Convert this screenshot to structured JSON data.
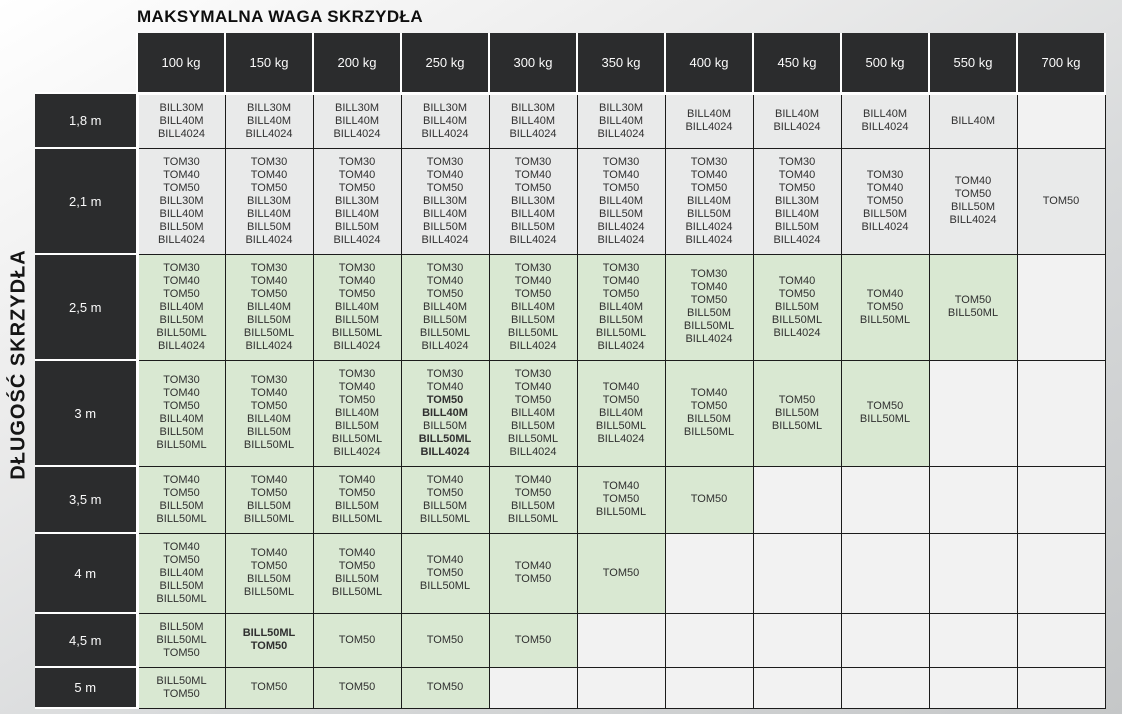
{
  "page": {
    "title": "MAKSYMALNA WAGA SKRZYDŁA",
    "side_label": "DŁUGOŚĆ SKRZYDŁA"
  },
  "colors": {
    "header_bg": "#2b2c2d",
    "cell_gray": "#e9eaea",
    "cell_green": "#d9e8d2",
    "cell_empty": "#f2f2f2",
    "grid_line": "#1c1c1c",
    "header_text": "#fafafa"
  },
  "table": {
    "columns": [
      "100 kg",
      "150 kg",
      "200 kg",
      "250 kg",
      "300 kg",
      "350 kg",
      "400 kg",
      "450 kg",
      "500 kg",
      "550 kg",
      "700 kg"
    ],
    "rows": [
      {
        "label": "1,8 m",
        "tone": "gray",
        "cells": [
          [
            "BILL30M",
            "BILL40M",
            "BILL4024"
          ],
          [
            "BILL30M",
            "BILL40M",
            "BILL4024"
          ],
          [
            "BILL30M",
            "BILL40M",
            "BILL4024"
          ],
          [
            "BILL30M",
            "BILL40M",
            "BILL4024"
          ],
          [
            "BILL30M",
            "BILL40M",
            "BILL4024"
          ],
          [
            "BILL30M",
            "BILL40M",
            "BILL4024"
          ],
          [
            "BILL40M",
            "BILL4024"
          ],
          [
            "BILL40M",
            "BILL4024"
          ],
          [
            "BILL40M",
            "BILL4024"
          ],
          [
            "BILL40M"
          ],
          []
        ]
      },
      {
        "label": "2,1 m",
        "tone": "gray",
        "cells": [
          [
            "TOM30",
            "TOM40",
            "TOM50",
            "BILL30M",
            "BILL40M",
            "BILL50M",
            "BILL4024"
          ],
          [
            "TOM30",
            "TOM40",
            "TOM50",
            "BILL30M",
            "BILL40M",
            "BILL50M",
            "BILL4024"
          ],
          [
            "TOM30",
            "TOM40",
            "TOM50",
            "BILL30M",
            "BILL40M",
            "BILL50M",
            "BILL4024"
          ],
          [
            "TOM30",
            "TOM40",
            "TOM50",
            "BILL30M",
            "BILL40M",
            "BILL50M",
            "BILL4024"
          ],
          [
            "TOM30",
            "TOM40",
            "TOM50",
            "BILL30M",
            "BILL40M",
            "BILL50M",
            "BILL4024"
          ],
          [
            "TOM30",
            "TOM40",
            "TOM50",
            "BILL40M",
            "BILL50M",
            "BILL4024",
            "BILL4024"
          ],
          [
            "TOM30",
            "TOM40",
            "TOM50",
            "BILL40M",
            "BILL50M",
            "BILL4024",
            "BILL4024"
          ],
          [
            "TOM30",
            "TOM40",
            "TOM50",
            "BILL30M",
            "BILL40M",
            "BILL50M",
            "BILL4024"
          ],
          [
            "TOM30",
            "TOM40",
            "TOM50",
            "BILL50M",
            "BILL4024"
          ],
          [
            "TOM40",
            "TOM50",
            "BILL50M",
            "BILL4024"
          ],
          [
            "TOM50"
          ]
        ]
      },
      {
        "label": "2,5 m",
        "tone": "green",
        "cells": [
          [
            "TOM30",
            "TOM40",
            "TOM50",
            "BILL40M",
            "BILL50M",
            "BILL50ML",
            "BILL4024"
          ],
          [
            "TOM30",
            "TOM40",
            "TOM50",
            "BILL40M",
            "BILL50M",
            "BILL50ML",
            "BILL4024"
          ],
          [
            "TOM30",
            "TOM40",
            "TOM50",
            "BILL40M",
            "BILL50M",
            "BILL50ML",
            "BILL4024"
          ],
          [
            "TOM30",
            "TOM40",
            "TOM50",
            "BILL40M",
            "BILL50M",
            "BILL50ML",
            "BILL4024"
          ],
          [
            "TOM30",
            "TOM40",
            "TOM50",
            "BILL40M",
            "BILL50M",
            "BILL50ML",
            "BILL4024"
          ],
          [
            "TOM30",
            "TOM40",
            "TOM50",
            "BILL40M",
            "BILL50M",
            "BILL50ML",
            "BILL4024"
          ],
          [
            "TOM30",
            "TOM40",
            "TOM50",
            "BILL50M",
            "BILL50ML",
            "BILL4024"
          ],
          [
            "TOM40",
            "TOM50",
            "BILL50M",
            "BILL50ML",
            "BILL4024"
          ],
          [
            "TOM40",
            "TOM50",
            "BILL50ML"
          ],
          [
            "TOM50",
            "BILL50ML"
          ],
          []
        ]
      },
      {
        "label": "3 m",
        "tone": "green",
        "cells": [
          [
            "TOM30",
            "TOM40",
            "TOM50",
            "BILL40M",
            "BILL50M",
            "BILL50ML"
          ],
          [
            "TOM30",
            "TOM40",
            "TOM50",
            "BILL40M",
            "BILL50M",
            "BILL50ML"
          ],
          [
            "TOM30",
            "TOM40",
            "TOM50",
            "BILL40M",
            "BILL50M",
            "BILL50ML",
            "BILL4024"
          ],
          [
            "TOM30",
            "TOM40",
            {
              "t": "TOM50",
              "b": true
            },
            {
              "t": "BILL40M",
              "b": true
            },
            "BILL50M",
            {
              "t": "BILL50ML",
              "b": true
            },
            {
              "t": "BILL4024",
              "b": true
            }
          ],
          [
            "TOM30",
            "TOM40",
            "TOM50",
            "BILL40M",
            "BILL50M",
            "BILL50ML",
            "BILL4024"
          ],
          [
            "TOM40",
            "TOM50",
            "BILL40M",
            "BILL50ML",
            "BILL4024"
          ],
          [
            "TOM40",
            "TOM50",
            "BILL50M",
            "BILL50ML"
          ],
          [
            "TOM50",
            "BILL50M",
            "BILL50ML"
          ],
          [
            "TOM50",
            "BILL50ML"
          ],
          [],
          []
        ]
      },
      {
        "label": "3,5 m",
        "tone": "green",
        "cells": [
          [
            "TOM40",
            "TOM50",
            "BILL50M",
            "BILL50ML"
          ],
          [
            "TOM40",
            "TOM50",
            "BILL50M",
            "BILL50ML"
          ],
          [
            "TOM40",
            "TOM50",
            "BILL50M",
            "BILL50ML"
          ],
          [
            "TOM40",
            "TOM50",
            "BILL50M",
            "BILL50ML"
          ],
          [
            "TOM40",
            "TOM50",
            "BILL50M",
            "BILL50ML"
          ],
          [
            "TOM40",
            "TOM50",
            "BILL50ML"
          ],
          [
            "TOM50"
          ],
          [],
          [],
          [],
          []
        ]
      },
      {
        "label": "4 m",
        "tone": "green",
        "cells": [
          [
            "TOM40",
            "TOM50",
            "BILL40M",
            "BILL50M",
            "BILL50ML"
          ],
          [
            "TOM40",
            "TOM50",
            "BILL50M",
            "BILL50ML"
          ],
          [
            "TOM40",
            "TOM50",
            "BILL50M",
            "BILL50ML"
          ],
          [
            "TOM40",
            "TOM50",
            "BILL50ML"
          ],
          [
            "TOM40",
            "TOM50"
          ],
          [
            "TOM50"
          ],
          [],
          [],
          [],
          [],
          []
        ]
      },
      {
        "label": "4,5 m",
        "tone": "green",
        "cells": [
          [
            "BILL50M",
            "BILL50ML",
            "TOM50"
          ],
          [
            {
              "t": "BILL50ML",
              "b": true
            },
            {
              "t": "TOM50",
              "b": true
            }
          ],
          [
            "TOM50"
          ],
          [
            "TOM50"
          ],
          [
            "TOM50"
          ],
          [],
          [],
          [],
          [],
          [],
          []
        ]
      },
      {
        "label": "5 m",
        "tone": "green",
        "cells": [
          [
            "BILL50ML",
            "TOM50"
          ],
          [
            "TOM50"
          ],
          [
            "TOM50"
          ],
          [
            "TOM50"
          ],
          [],
          [],
          [],
          [],
          [],
          [],
          []
        ]
      }
    ]
  }
}
